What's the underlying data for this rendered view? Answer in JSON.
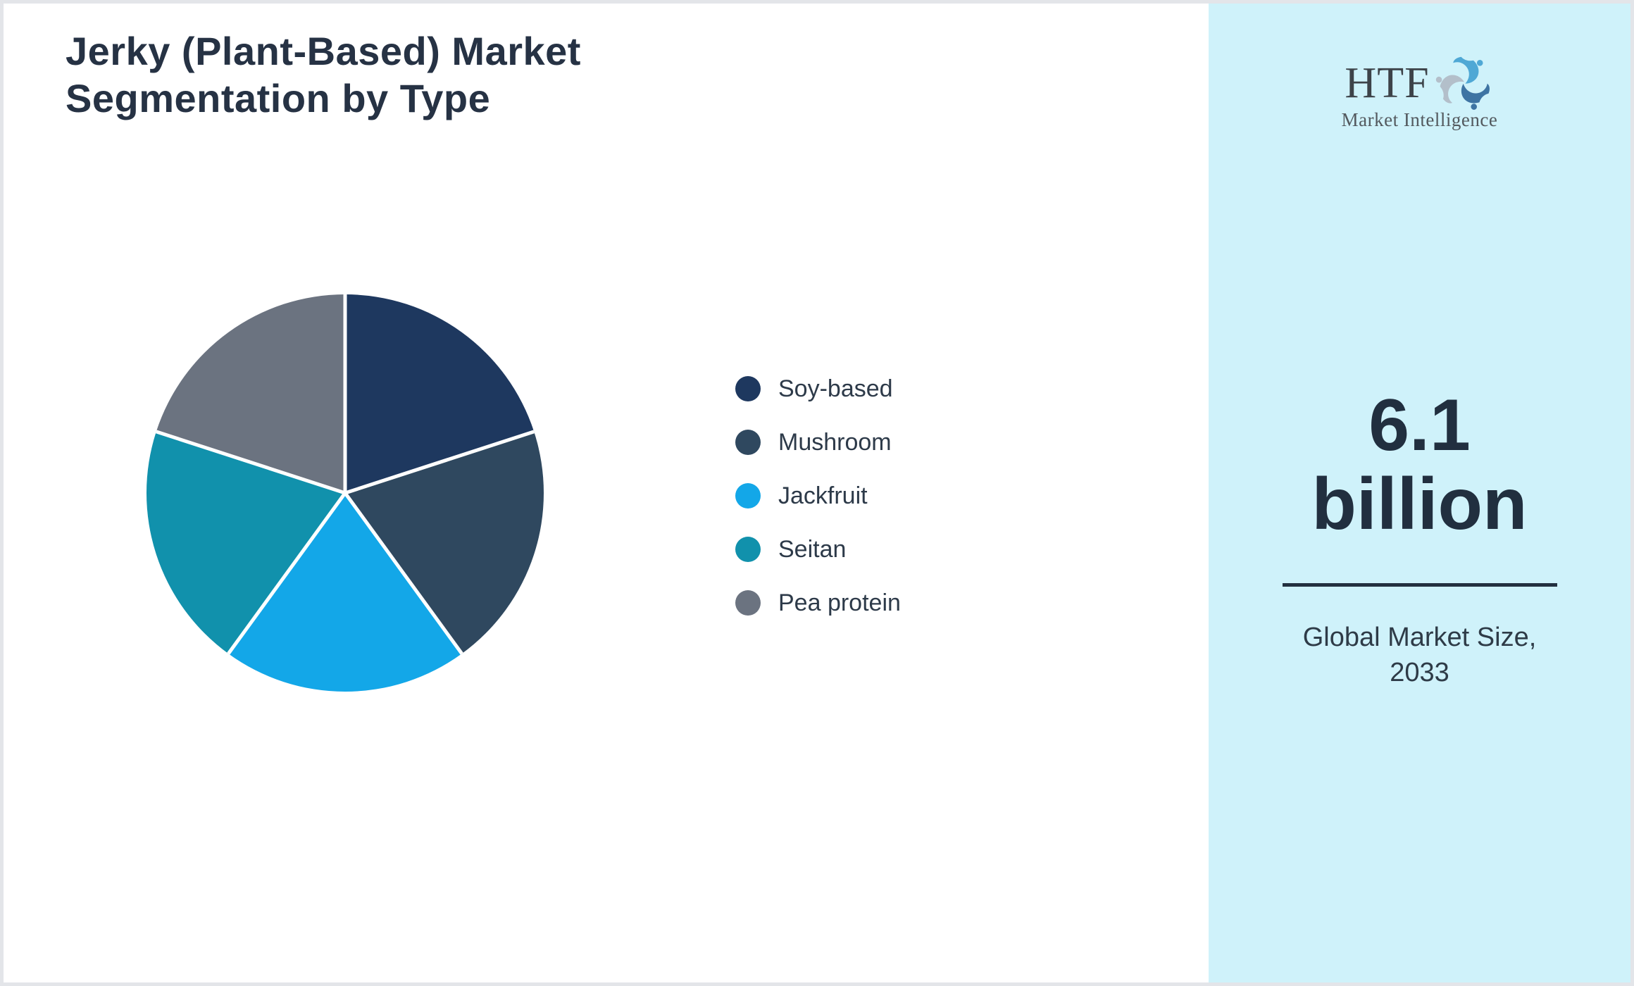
{
  "title": {
    "line1": "Jerky (Plant-Based) Market",
    "line2": "Segmentation by Type"
  },
  "chart_data": {
    "type": "pie",
    "title": "Jerky (Plant-Based) Market Segmentation by Type",
    "categories": [
      "Soy-based",
      "Mushroom",
      "Jackfruit",
      "Seitan",
      "Pea protein"
    ],
    "values": [
      20,
      20,
      20,
      20,
      20
    ],
    "colors": [
      "#1e385f",
      "#2f485f",
      "#13a7e8",
      "#1191ac",
      "#6b7380"
    ],
    "start_angle_deg": -90,
    "direction": "clockwise",
    "data_labels": false,
    "legend_position": "right",
    "slice_separator_color": "#ffffff"
  },
  "legend": {
    "items": [
      {
        "label": "Soy-based",
        "color": "#1e385f"
      },
      {
        "label": "Mushroom",
        "color": "#2f485f"
      },
      {
        "label": "Jackfruit",
        "color": "#13a7e8"
      },
      {
        "label": "Seitan",
        "color": "#1191ac"
      },
      {
        "label": "Pea protein",
        "color": "#6b7380"
      }
    ]
  },
  "sidebar": {
    "background": "#cff2fa",
    "logo": {
      "brand": "HTF",
      "tagline": "Market Intelligence",
      "icon": "dolphins-trio-logo",
      "dolphin_colors": [
        "#4fa8d5",
        "#3e74a3",
        "#b3bfca"
      ]
    },
    "stat": {
      "value_line1": "6.1",
      "value_line2": "billion",
      "label_line1": "Global Market Size,",
      "label_line2": "2033"
    },
    "divider_color": "#22303f"
  },
  "colors": {
    "page_background": "#ffffff",
    "page_border": "#e3e5e9",
    "title_text": "#263244",
    "legend_text": "#2d3a49",
    "stat_text": "#212f3f"
  }
}
